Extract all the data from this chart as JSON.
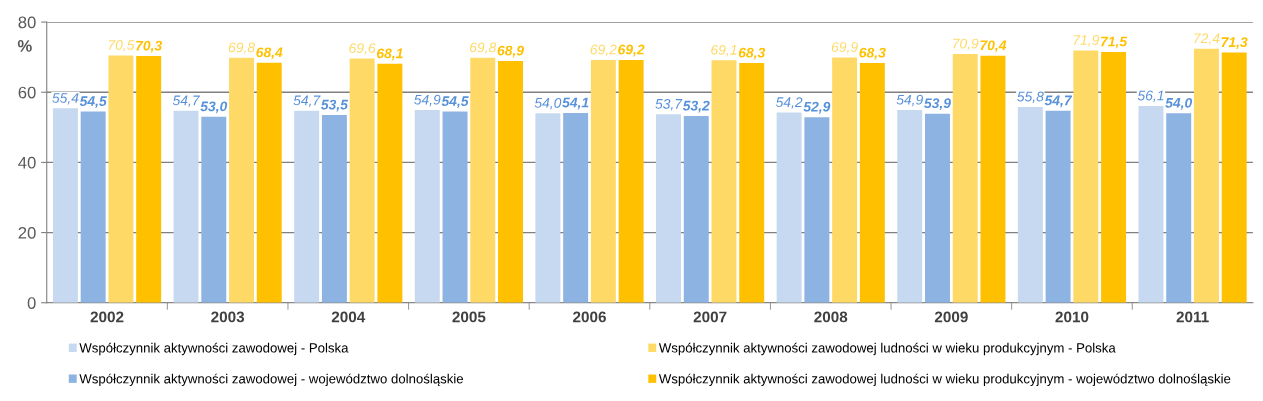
{
  "chart_data": {
    "type": "bar",
    "ylabel": "%",
    "categories": [
      "2002",
      "2003",
      "2004",
      "2005",
      "2006",
      "2007",
      "2008",
      "2009",
      "2010",
      "2011"
    ],
    "series": [
      {
        "name": "Współczynnik aktywności zawodowej - Polska",
        "color": "#c6d9f1",
        "values": [
          55.4,
          54.7,
          54.7,
          54.9,
          54.0,
          53.7,
          54.2,
          54.9,
          55.8,
          56.1
        ],
        "value_labels": [
          "55,4",
          "54,7",
          "54,7",
          "54,9",
          "54,0",
          "53,7",
          "54,2",
          "54,9",
          "55,8",
          "56,1"
        ]
      },
      {
        "name": "Współczynnik aktywności zawodowej - województwo dolnośląskie",
        "color": "#8db3e2",
        "values": [
          54.5,
          53.0,
          53.5,
          54.5,
          54.1,
          53.2,
          52.9,
          53.9,
          54.7,
          54.0
        ],
        "value_labels": [
          "54,5",
          "53,0",
          "53,5",
          "54,5",
          "54,1",
          "53,2",
          "52,9",
          "53,9",
          "54,7",
          "54,0"
        ]
      },
      {
        "name": "Współczynnik aktywności zawodowej ludności w wieku produkcyjnym - Polska",
        "color": "#ffd966",
        "values": [
          70.5,
          69.8,
          69.6,
          69.8,
          69.2,
          69.1,
          69.9,
          70.9,
          71.9,
          72.4
        ],
        "value_labels": [
          "70,5",
          "69,8",
          "69,6",
          "69,8",
          "69,2",
          "69,1",
          "69,9",
          "70,9",
          "71,9",
          "72,4"
        ]
      },
      {
        "name": "Współczynnik aktywności zawodowej ludności w wieku produkcyjnym - województwo dolnośląskie",
        "color": "#ffc000",
        "values": [
          70.3,
          68.4,
          68.1,
          68.9,
          69.2,
          68.3,
          68.3,
          70.4,
          71.5,
          71.3
        ],
        "value_labels": [
          "70,3",
          "68,4",
          "68,1",
          "68,9",
          "69,2",
          "68,3",
          "68,3",
          "70,4",
          "71,5",
          "71,3"
        ]
      }
    ],
    "ylim": [
      0,
      80
    ],
    "yticks": [
      0,
      20,
      40,
      60,
      80
    ],
    "grid": "y",
    "legend": "bottom"
  }
}
